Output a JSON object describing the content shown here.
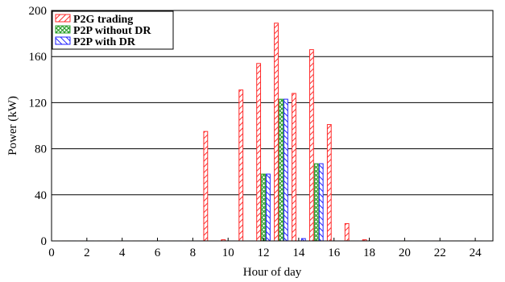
{
  "chart_data": {
    "type": "bar",
    "xlabel": "Hour of day",
    "ylabel": "Power (kW)",
    "xlim": [
      0,
      25
    ],
    "ylim": [
      0,
      200
    ],
    "xticks": [
      0,
      2,
      4,
      6,
      8,
      10,
      12,
      14,
      16,
      18,
      20,
      22,
      24
    ],
    "yticks": [
      0,
      40,
      80,
      120,
      160,
      200
    ],
    "grid": "horizontal",
    "legend_position": "top-left",
    "hours": [
      1,
      2,
      3,
      4,
      5,
      6,
      7,
      8,
      9,
      10,
      11,
      12,
      13,
      14,
      15,
      16,
      17,
      18,
      19,
      20,
      21,
      22,
      23,
      24
    ],
    "series": [
      {
        "name": "P2G trading",
        "color": "#ff2a2a",
        "pattern": "diagonal-right",
        "values": [
          0,
          0,
          0,
          0,
          0,
          0,
          0,
          0,
          95,
          1,
          131,
          154,
          189,
          128,
          166,
          101,
          15,
          1,
          0,
          0,
          0,
          0,
          0,
          0
        ]
      },
      {
        "name": "P2P without DR",
        "color": "#2ca02c",
        "pattern": "cross",
        "values": [
          0,
          0,
          0,
          0,
          0,
          0,
          0,
          0,
          0,
          0,
          0,
          58,
          123,
          0,
          67,
          0,
          0,
          0,
          0,
          0,
          0,
          0,
          0,
          0
        ]
      },
      {
        "name": "P2P with DR",
        "color": "#1f1fff",
        "pattern": "diagonal-left",
        "values": [
          0,
          0,
          0,
          0,
          0,
          0,
          0,
          0,
          0,
          0,
          0,
          58,
          123,
          2,
          67,
          0,
          0,
          0,
          0,
          0,
          0,
          0,
          0,
          0
        ]
      }
    ]
  }
}
